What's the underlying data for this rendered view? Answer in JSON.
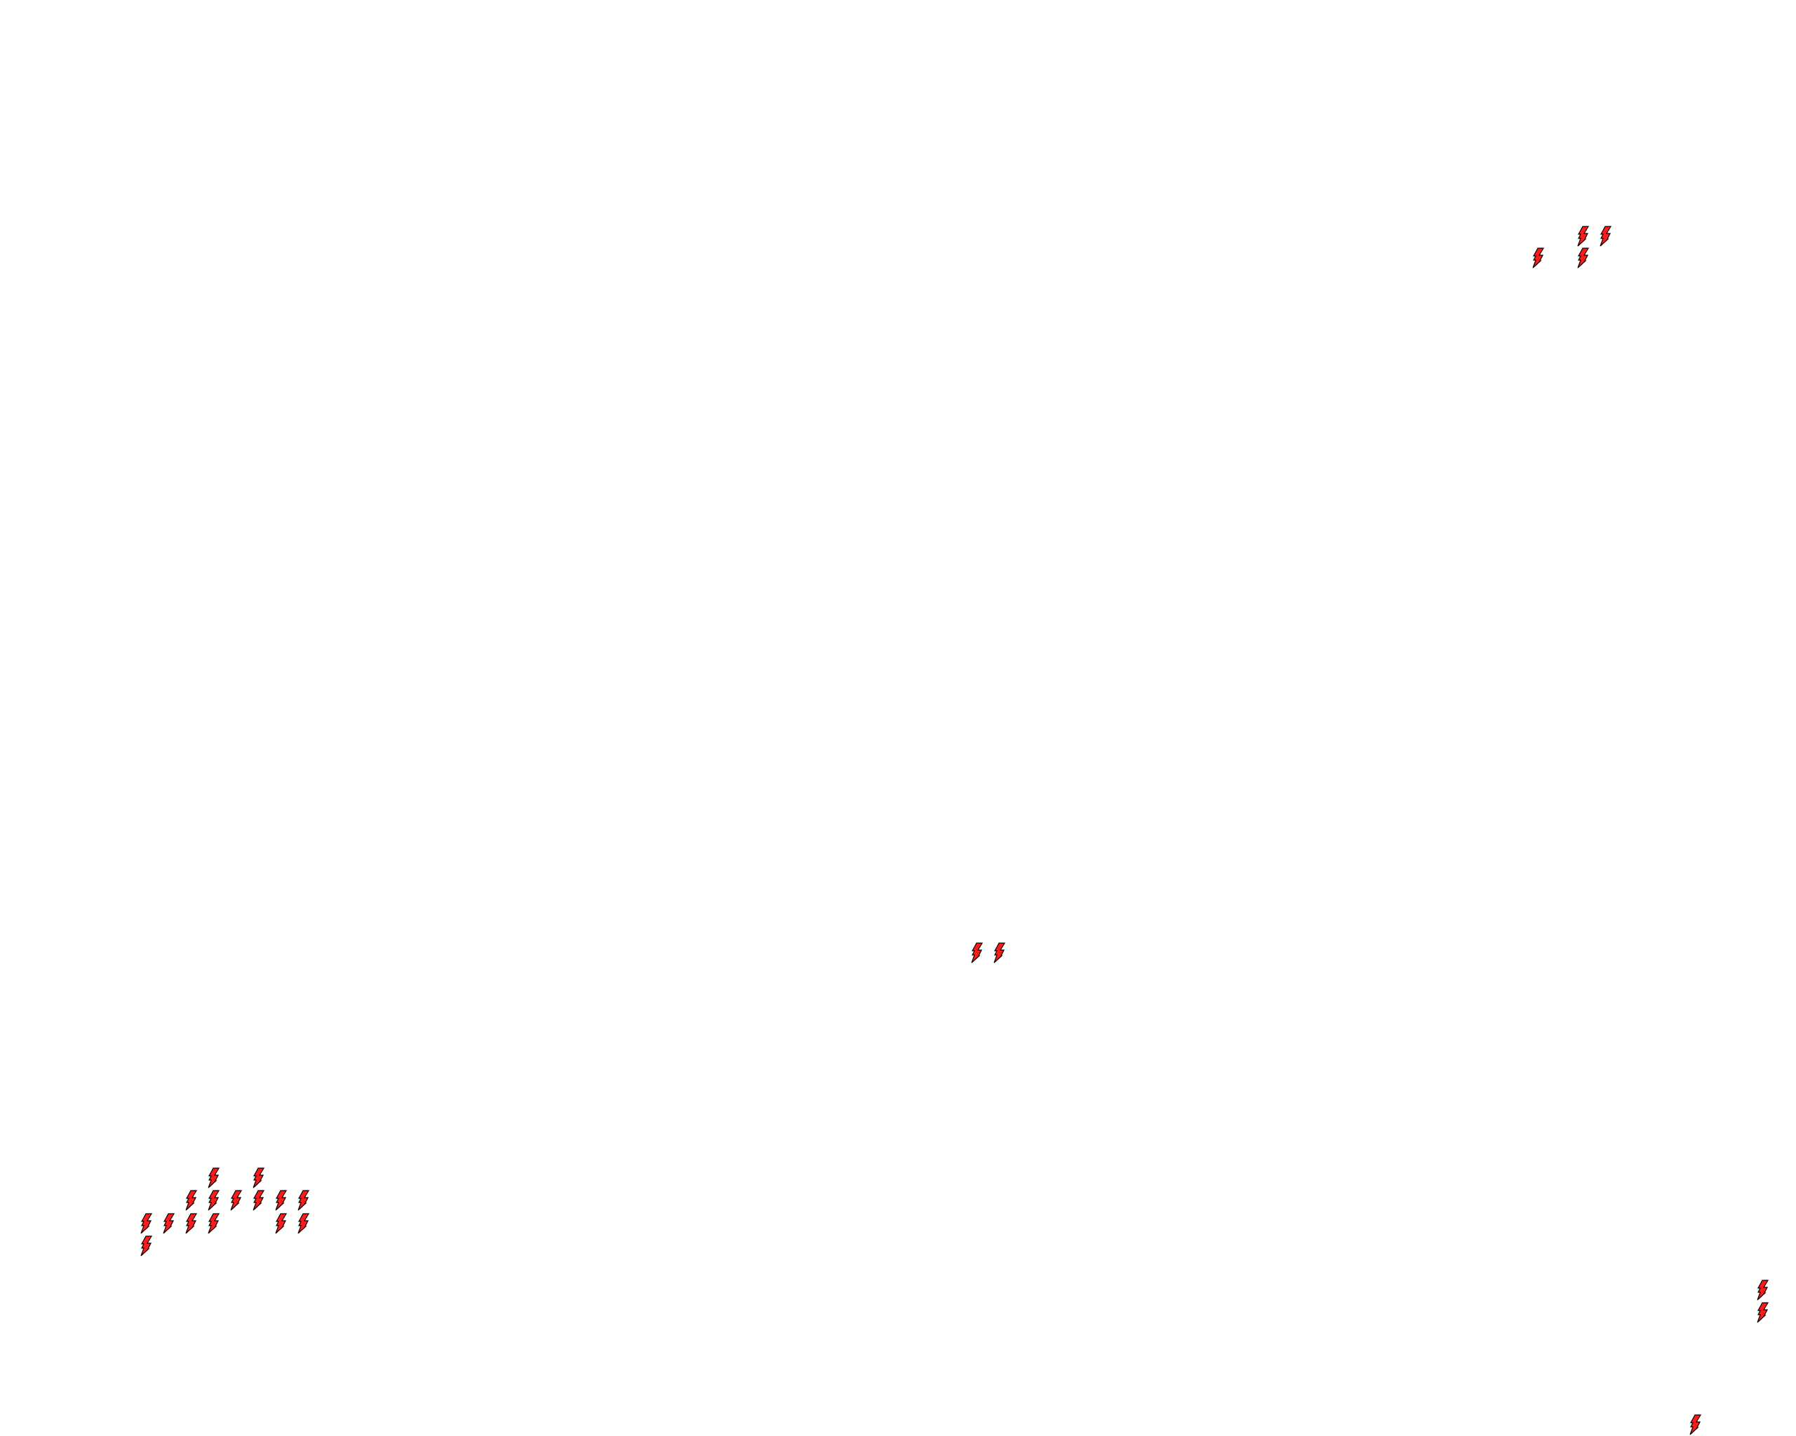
{
  "map": {
    "background_color": "#ffffff",
    "marker": {
      "icon": "lightning-bolt-icon",
      "fill_color": "#ff1a1a",
      "stroke_color": "#000000"
    }
  }
}
